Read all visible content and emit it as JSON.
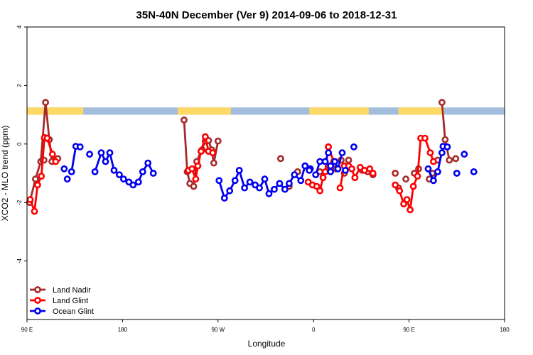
{
  "chart_data": {
    "type": "line",
    "title": "35N-40N December (Ver 9)   2014-09-06 to 2018-12-31",
    "xlabel": "Longitude",
    "ylabel": "XCO2 - MLO trend (ppm)",
    "xlim": [
      90,
      540
    ],
    "ylim": [
      -6,
      4
    ],
    "x_ticks": [
      {
        "value": 90,
        "label": "90 E"
      },
      {
        "value": 180,
        "label": "180"
      },
      {
        "value": 270,
        "label": "90 W"
      },
      {
        "value": 360,
        "label": "0"
      },
      {
        "value": 450,
        "label": "90 E"
      },
      {
        "value": 540,
        "label": "180"
      }
    ],
    "y_ticks": [
      {
        "value": -4,
        "label": "-4"
      },
      {
        "value": -2,
        "label": "-2"
      },
      {
        "value": 0,
        "label": "0"
      },
      {
        "value": 2,
        "label": "2"
      },
      {
        "value": 4,
        "label": "4"
      }
    ],
    "legend_position": "bottom-left",
    "grid": false,
    "surface_strip": {
      "y_bottom": 1.0,
      "y_top": 1.25,
      "land_color": "#FFD966",
      "ocean_color": "#A3BEDC",
      "land_ranges": [
        [
          90,
          143
        ],
        [
          232,
          282
        ],
        [
          356,
          412
        ],
        [
          440,
          483
        ]
      ]
    },
    "series": [
      {
        "name": "Land Nadir",
        "color": "#A52A2A",
        "segments": [
          [
            [
              92.5,
              -2.0
            ],
            [
              98,
              -1.2
            ],
            [
              103,
              -0.6
            ],
            [
              107.5,
              1.42
            ],
            [
              111,
              0.15
            ],
            [
              113.5,
              -0.6
            ],
            [
              119,
              -0.5
            ]
          ],
          [
            [
              105,
              -0.55
            ]
          ],
          [
            [
              106,
              -0.55
            ]
          ],
          [
            [
              106.5,
              0.2
            ]
          ],
          [
            [
              238,
              0.82
            ],
            [
              241,
              -0.95
            ],
            [
              243.5,
              -1.35
            ],
            [
              247,
              -1.45
            ],
            [
              250,
              -0.6
            ],
            [
              254,
              -0.25
            ],
            [
              258,
              0.1
            ],
            [
              261,
              0.12
            ],
            [
              264,
              -0.2
            ],
            [
              266,
              -0.65
            ],
            [
              270,
              0.1
            ]
          ],
          [
            [
              255,
              -0.2
            ]
          ],
          [
            [
              329,
              -0.5
            ]
          ],
          [
            [
              337,
              -1.45
            ]
          ],
          [
            [
              345,
              -0.95
            ]
          ],
          [
            [
              366,
              -0.95
            ]
          ],
          [
            [
              374,
              -0.75
            ]
          ],
          [
            [
              381,
              -0.85
            ]
          ],
          [
            [
              386,
              -0.55
            ]
          ],
          [
            [
              389,
              -1.0
            ]
          ],
          [
            [
              393,
              -0.55
            ]
          ],
          [
            [
              406,
              -0.9
            ]
          ],
          [
            [
              411,
              -0.95
            ]
          ],
          [
            [
              416,
              -1.05
            ]
          ],
          [
            [
              437,
              -1.0
            ]
          ],
          [
            [
              440,
              -1.5
            ]
          ],
          [
            [
              447,
              -1.2
            ]
          ],
          [
            [
              455,
              -1.0
            ]
          ],
          [
            [
              459,
              -0.85
            ]
          ],
          [
            [
              469,
              -1.2
            ]
          ],
          [
            [
              472,
              -1.0
            ]
          ],
          [
            [
              477,
              -0.55
            ]
          ],
          [
            [
              481,
              1.42
            ],
            [
              484,
              0.15
            ],
            [
              488,
              -0.55
            ]
          ],
          [
            [
              494,
              -0.5
            ]
          ]
        ]
      },
      {
        "name": "Land Glint",
        "color": "#FF0000",
        "segments": [
          [
            [
              93,
              -1.9
            ],
            [
              97,
              -2.3
            ],
            [
              100,
              -1.4
            ],
            [
              103.5,
              -1.1
            ],
            [
              106.5,
              0.22
            ],
            [
              109,
              0.2
            ],
            [
              114,
              -0.35
            ],
            [
              117,
              -0.6
            ]
          ],
          [
            [
              242,
              -0.9
            ],
            [
              245.5,
              -0.85
            ],
            [
              249,
              -1.2
            ],
            [
              251,
              -0.75
            ],
            [
              254,
              -0.25
            ],
            [
              258,
              0.25
            ],
            [
              261,
              -0.25
            ],
            [
              265,
              -0.3
            ]
          ],
          [
            [
              355,
              -1.3
            ],
            [
              359,
              -1.4
            ],
            [
              363,
              -1.45
            ],
            [
              366,
              -1.6
            ],
            [
              369,
              -1.15
            ],
            [
              371,
              -0.95
            ],
            [
              374,
              -0.1
            ]
          ],
          [
            [
              374,
              -0.1
            ],
            [
              379,
              -0.6
            ]
          ],
          [
            [
              385,
              -1.5
            ],
            [
              389,
              -0.75
            ],
            [
              393,
              -0.75
            ],
            [
              396,
              -0.85
            ],
            [
              399,
              -1.15
            ],
            [
              404,
              -0.8
            ],
            [
              408,
              -0.9
            ],
            [
              413,
              -0.85
            ],
            [
              416,
              -1.0
            ]
          ],
          [
            [
              437,
              -1.4
            ],
            [
              441,
              -1.6
            ],
            [
              445,
              -2.05
            ],
            [
              448,
              -1.9
            ],
            [
              451,
              -2.25
            ],
            [
              454,
              -1.45
            ],
            [
              458,
              -1.1
            ],
            [
              461,
              0.2
            ],
            [
              465,
              0.2
            ],
            [
              470,
              -0.3
            ],
            [
              473,
              -0.6
            ]
          ]
        ]
      },
      {
        "name": "Ocean Glint",
        "color": "#0000EE",
        "segments": [
          [
            [
              132,
              -0.95
            ],
            [
              136,
              -0.08
            ]
          ],
          [
            [
              140,
              -0.1
            ]
          ],
          [
            [
              125,
              -0.85
            ]
          ],
          [
            [
              128,
              -1.2
            ]
          ],
          [
            [
              149,
              -0.35
            ]
          ],
          [
            [
              154,
              -0.95
            ],
            [
              160,
              -0.3
            ],
            [
              164,
              -0.6
            ],
            [
              168,
              -0.3
            ],
            [
              172,
              -0.9
            ],
            [
              177,
              -1.05
            ],
            [
              181,
              -1.2
            ],
            [
              186,
              -1.3
            ],
            [
              190,
              -1.4
            ],
            [
              195,
              -1.3
            ],
            [
              199,
              -0.95
            ],
            [
              204,
              -0.65
            ],
            [
              209,
              -1.0
            ]
          ],
          [
            [
              271,
              -1.25
            ],
            [
              276,
              -1.85
            ],
            [
              281,
              -1.6
            ],
            [
              286,
              -1.25
            ],
            [
              290,
              -0.9
            ],
            [
              295,
              -1.5
            ],
            [
              300,
              -1.3
            ],
            [
              305,
              -1.4
            ],
            [
              309,
              -1.5
            ],
            [
              314,
              -1.2
            ],
            [
              318,
              -1.7
            ],
            [
              323,
              -1.55
            ],
            [
              328,
              -1.35
            ],
            [
              333,
              -1.55
            ],
            [
              337,
              -1.35
            ],
            [
              342,
              -1.05
            ],
            [
              348,
              -1.25
            ],
            [
              352,
              -0.75
            ],
            [
              357,
              -0.85
            ]
          ],
          [
            [
              352,
              -0.75
            ],
            [
              356,
              -0.9
            ]
          ],
          [
            [
              362,
              -1.05
            ],
            [
              366,
              -0.6
            ],
            [
              371,
              -0.6
            ],
            [
              374,
              -0.3
            ]
          ],
          [
            [
              376,
              -0.75
            ],
            [
              380,
              -0.6
            ],
            [
              383,
              -0.85
            ],
            [
              387,
              -0.3
            ]
          ],
          [
            [
              390,
              -0.9
            ]
          ],
          [
            [
              398,
              -0.1
            ]
          ],
          [
            [
              468,
              -0.85
            ],
            [
              473,
              -1.25
            ],
            [
              477,
              -0.95
            ],
            [
              482,
              -0.08
            ],
            [
              486,
              -0.1
            ]
          ],
          [
            [
              495,
              -1.0
            ]
          ],
          [
            [
              502,
              -0.35
            ]
          ],
          [
            [
              511,
              -0.95
            ]
          ],
          [
            [
              481,
              -0.3
            ]
          ],
          [
            [
              376,
              -0.95
            ]
          ]
        ]
      }
    ]
  }
}
